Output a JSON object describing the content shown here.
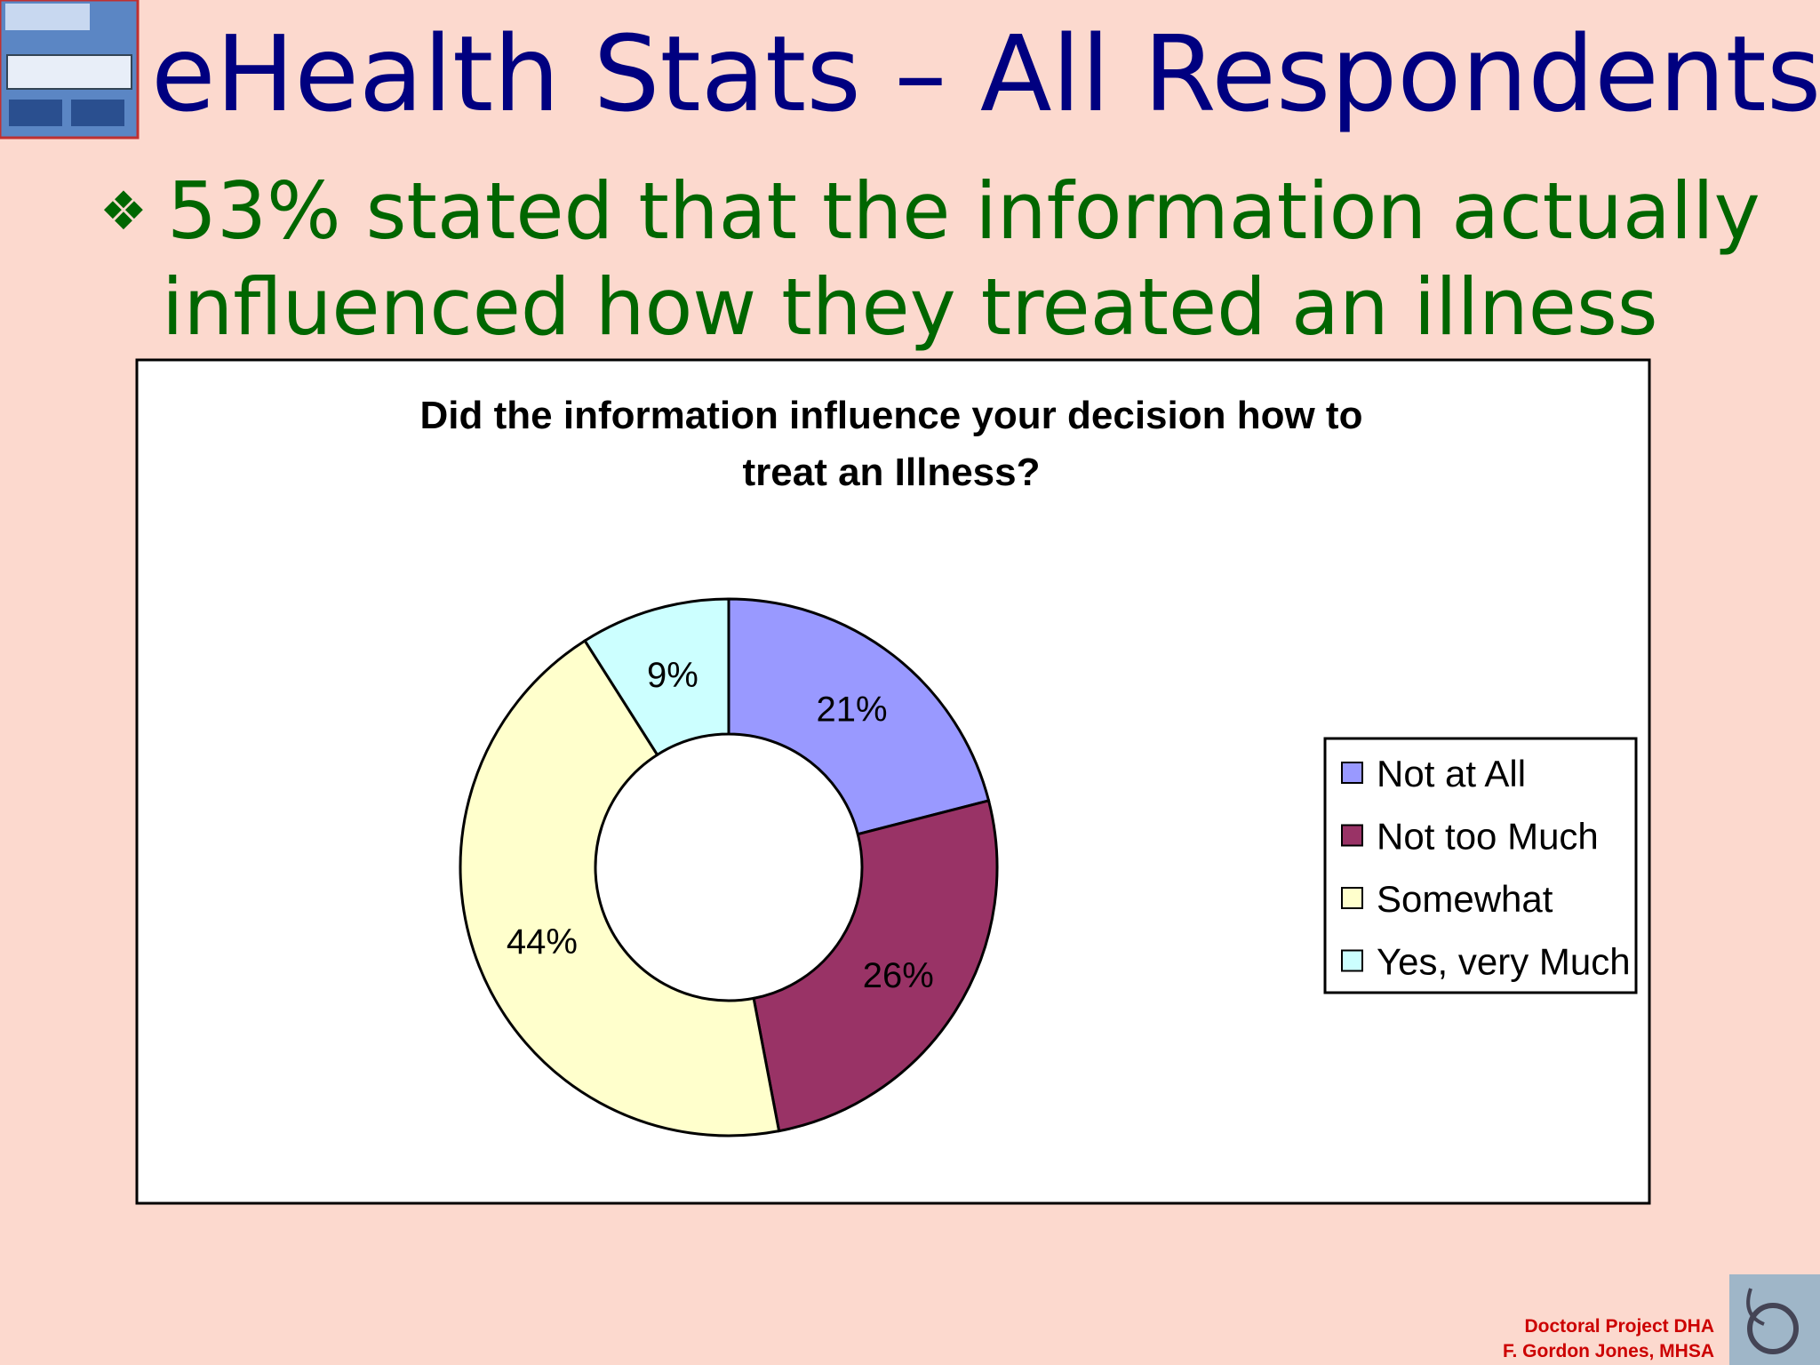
{
  "slide": {
    "title": "eHealth Stats – All Respondents",
    "bullet_lines": [
      "53% stated that the information actually",
      "influenced how they treated an illness"
    ],
    "footer": [
      "Doctoral Project DHA",
      "F. Gordon Jones, MHSA"
    ]
  },
  "chart_data": {
    "type": "donut",
    "title": [
      "Did the information influence your decision how to",
      "treat an Illness?"
    ],
    "categories": [
      "Not at All",
      "Not too Much",
      "Somewhat",
      "Yes, very Much"
    ],
    "values": [
      21,
      26,
      44,
      9
    ],
    "value_labels": [
      "21%",
      "26%",
      "44%",
      "9%"
    ],
    "colors": [
      "#9999ff",
      "#993366",
      "#ffffcc",
      "#ccffff"
    ],
    "legend": "right"
  }
}
